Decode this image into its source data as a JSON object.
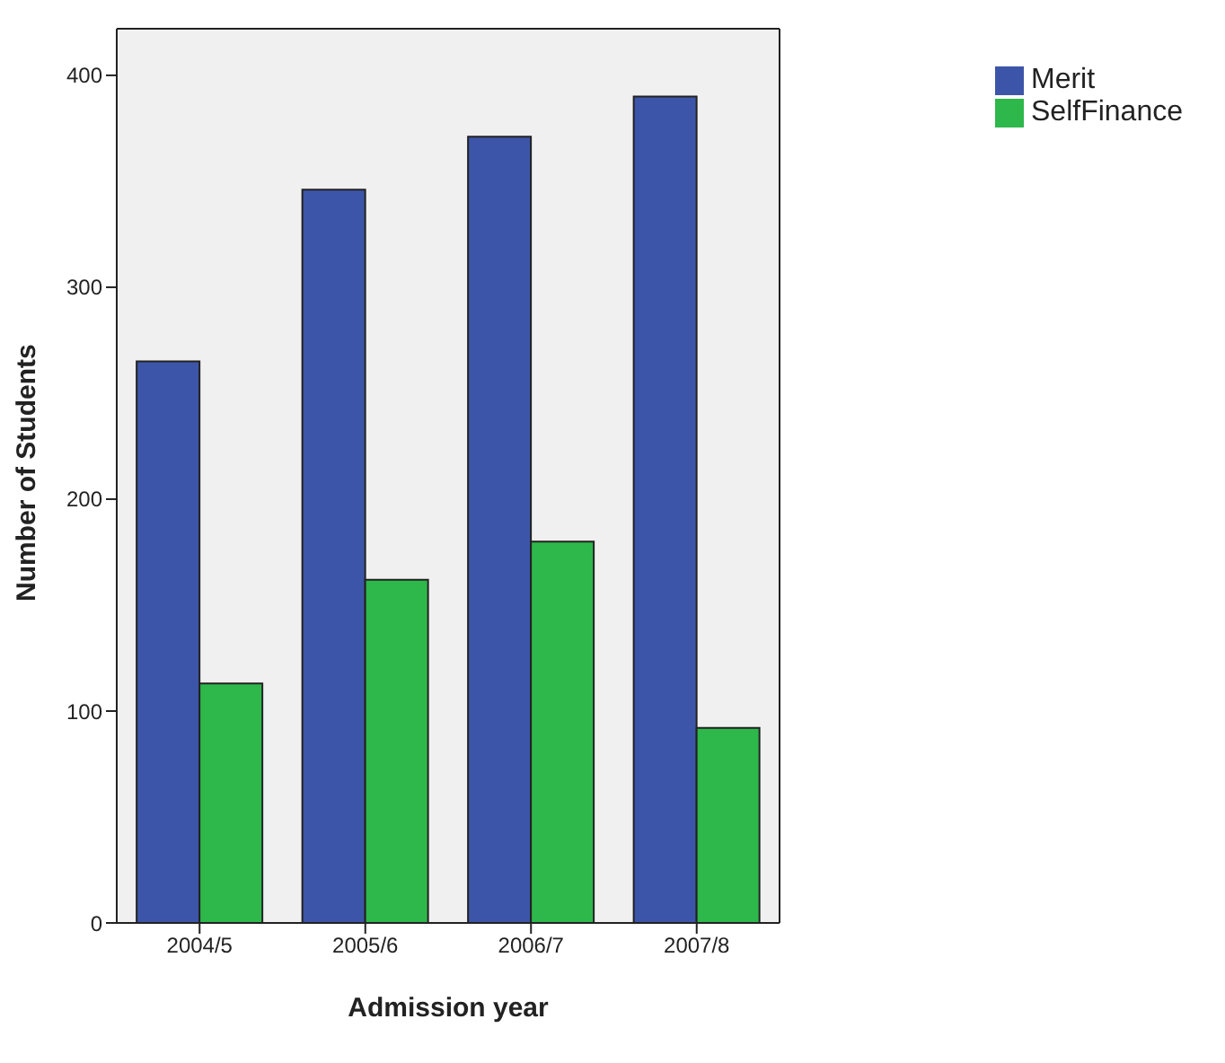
{
  "chart_data": {
    "type": "bar",
    "xlabel": "Admission year",
    "ylabel": "Number of Students",
    "categories": [
      "2004/5",
      "2005/6",
      "2006/7",
      "2007/8"
    ],
    "series": [
      {
        "name": "Merit",
        "color": "#3c55a8",
        "values": [
          265,
          346,
          371,
          390
        ]
      },
      {
        "name": "SelfFinance",
        "color": "#2eb84b",
        "values": [
          113,
          162,
          180,
          92
        ]
      }
    ],
    "ylim": [
      0,
      422
    ],
    "yticks": [
      0,
      100,
      200,
      300,
      400
    ],
    "grid": false,
    "legend": "top right"
  }
}
